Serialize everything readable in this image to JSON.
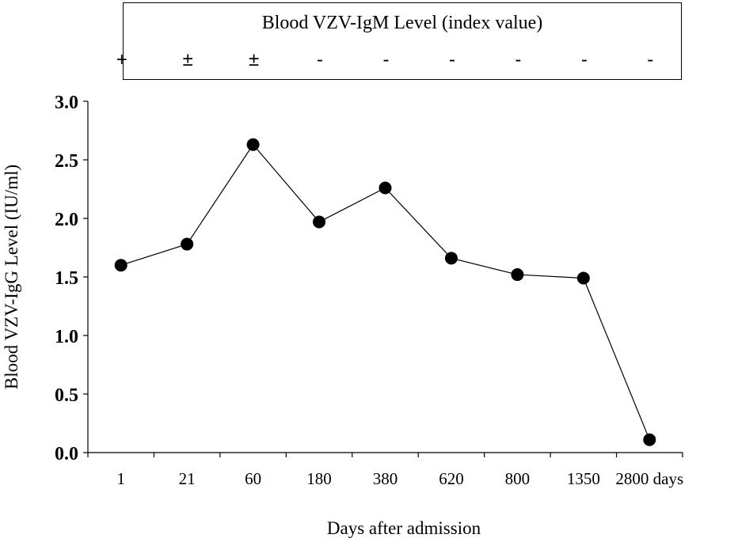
{
  "chart_data": {
    "type": "line",
    "ylabel": "Blood VZV-IgG Level (IU/ml)",
    "xlabel": "Days after admission",
    "categories": [
      "1",
      "21",
      "60",
      "180",
      "380",
      "620",
      "800",
      "1350",
      "2800 days"
    ],
    "values": [
      1.6,
      1.78,
      2.63,
      1.97,
      2.26,
      1.66,
      1.52,
      1.49,
      0.11
    ],
    "ylim": [
      0,
      3.0
    ],
    "yticks": [
      "0.0",
      "0.5",
      "1.0",
      "1.5",
      "2.0",
      "2.5",
      "3.0"
    ],
    "grid": false,
    "igm": {
      "title": "Blood VZV-IgM Level (index value)",
      "symbols": [
        "+",
        "±",
        "±",
        "-",
        "-",
        "-",
        "-",
        "-",
        "-"
      ]
    }
  }
}
